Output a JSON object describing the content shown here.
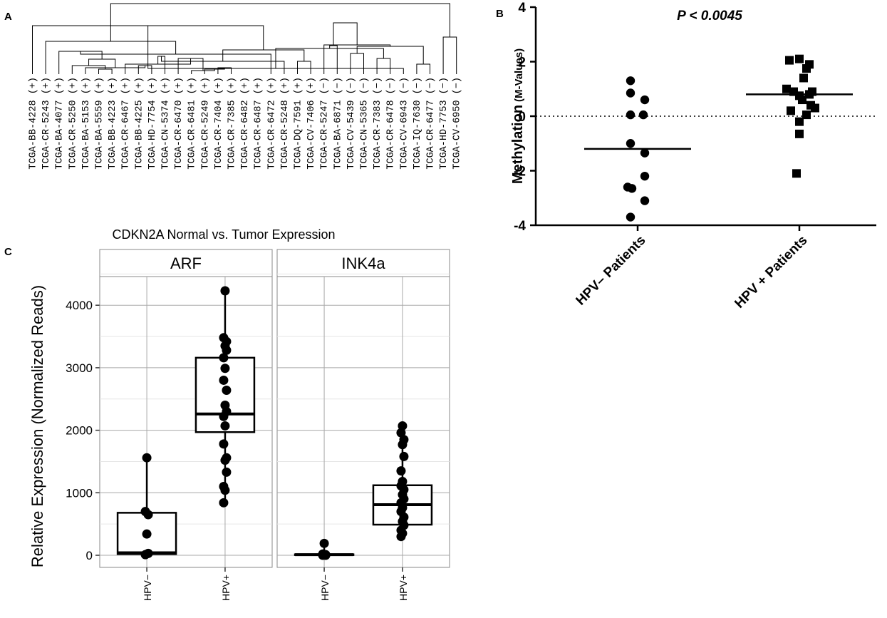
{
  "panels": {
    "a": "A",
    "b": "B",
    "c": "C"
  },
  "panel_a": {
    "leaves": [
      "TCGA-BB-4228 (+)",
      "TCGA-CR-5243 (+)",
      "TCGA-BA-4077 (+)",
      "TCGA-CR-5250 (+)",
      "TCGA-BA-5153 (+)",
      "TCGA-BA-5559 (+)",
      "TCGA-BB-4223 (+)",
      "TCGA-CR-6467 (+)",
      "TCGA-BB-4225 (+)",
      "TCGA-HD-7754 (+)",
      "TCGA-CN-5374 (+)",
      "TCGA-CR-6470 (+)",
      "TCGA-CR-6481 (+)",
      "TCGA-CR-5249 (+)",
      "TCGA-CR-7404 (+)",
      "TCGA-CR-7385 (+)",
      "TCGA-CR-6482 (+)",
      "TCGA-CR-6487 (+)",
      "TCGA-CR-6472 (+)",
      "TCGA-CR-5248 (+)",
      "TCGA-DQ-7591 (+)",
      "TCGA-CV-7406 (+)",
      "TCGA-CR-5247 (−)",
      "TCGA-BA-6871 (−)",
      "TCGA-CV-5439 (−)",
      "TCGA-CN-5365 (−)",
      "TCGA-CR-7383 (−)",
      "TCGA-CR-6478 (−)",
      "TCGA-CV-6943 (−)",
      "TCGA-IQ-7630 (−)",
      "TCGA-CR-6477 (−)",
      "TCGA-HD-7753 (−)",
      "TCGA-CV-6950 (−)"
    ]
  },
  "panel_b": {
    "annotation": "P < 0.0045",
    "ylabel_main": "Methylation",
    "ylabel_sub": "(M-Values)",
    "chart_data": {
      "type": "scatter",
      "categories": [
        "HPV– Patients",
        "HPV + Patients"
      ],
      "yticks": [
        4,
        2,
        0,
        -2,
        -4
      ],
      "ylim": [
        -4,
        4
      ],
      "series": [
        {
          "name": "HPV– Patients",
          "marker": "circle",
          "values": [
            1.3,
            0.85,
            0.6,
            0.05,
            0.05,
            -1.0,
            -1.35,
            -2.2,
            -2.6,
            -2.65,
            -3.1,
            -3.7
          ],
          "median": -1.2
        },
        {
          "name": "HPV + Patients",
          "marker": "square",
          "values": [
            2.1,
            2.05,
            1.9,
            1.75,
            1.4,
            1.0,
            0.9,
            0.9,
            0.8,
            0.75,
            0.6,
            0.4,
            0.3,
            0.2,
            0.05,
            -0.2,
            -0.65,
            -2.1
          ],
          "median": 0.8
        }
      ],
      "reference_line_y": 0
    }
  },
  "panel_c": {
    "title": "CDKN2A Normal vs. Tumor Expression",
    "ylabel": "Relative Expression (Normalized Reads)",
    "chart_data": {
      "type": "box",
      "yticks": [
        0,
        1000,
        2000,
        3000,
        4000
      ],
      "ylim": [
        -180,
        4430
      ],
      "facets": [
        {
          "name": "ARF",
          "categories": [
            "HPV−",
            "HPV+"
          ],
          "boxes": [
            {
              "q1": 20,
              "median": 40,
              "q3": 680,
              "whisker_low": 0,
              "whisker_high": 1560,
              "points": [
                1560,
                700,
                650,
                340,
                30,
                10
              ]
            },
            {
              "q1": 1970,
              "median": 2260,
              "q3": 3160,
              "whisker_low": 840,
              "whisker_high": 4230,
              "points": [
                4230,
                3480,
                3420,
                3350,
                3280,
                3160,
                2990,
                2800,
                2640,
                2400,
                2300,
                2220,
                2070,
                1780,
                1560,
                1520,
                1330,
                1100,
                1040,
                840
              ]
            }
          ]
        },
        {
          "name": "INK4a",
          "categories": [
            "HPV−",
            "HPV+"
          ],
          "boxes": [
            {
              "q1": 5,
              "median": 10,
              "q3": 15,
              "whisker_low": 0,
              "whisker_high": 190,
              "points": [
                190,
                20,
                10,
                5,
                0,
                0
              ]
            },
            {
              "q1": 490,
              "median": 810,
              "q3": 1120,
              "whisker_low": 300,
              "whisker_high": 2070,
              "points": [
                2070,
                1960,
                1850,
                1770,
                1580,
                1350,
                1180,
                1110,
                1050,
                970,
                900,
                840,
                760,
                700,
                610,
                540,
                480,
                400,
                350,
                300
              ]
            }
          ]
        }
      ]
    }
  }
}
